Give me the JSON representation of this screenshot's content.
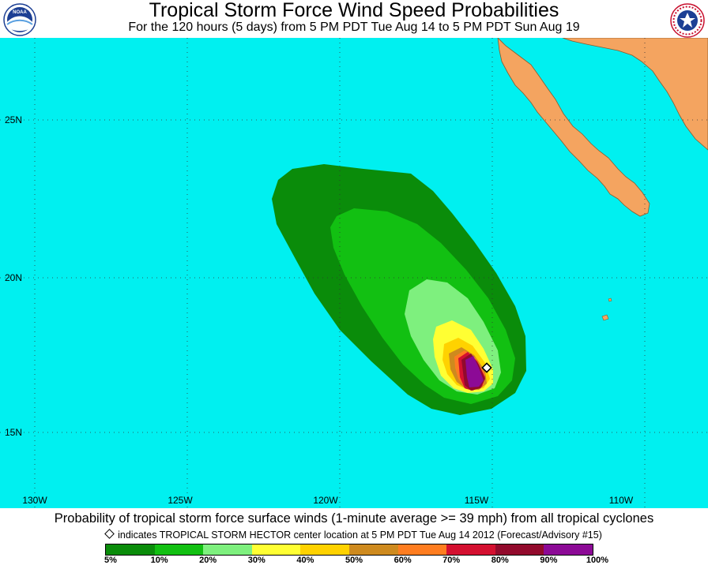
{
  "header": {
    "title": "Tropical Storm Force Wind Speed Probabilities",
    "subtitle": "For the 120 hours (5 days) from 5 PM PDT Tue Aug 14 to 5 PM PDT Sun Aug 19",
    "left_logo_text": "NOAA",
    "right_logo_text": "NATIONAL WEATHER SERVICE"
  },
  "map": {
    "ocean_color": "#00f0f0",
    "land_color": "#f4a460",
    "lat_labels": [
      "25N",
      "20N",
      "15N"
    ],
    "lon_labels": [
      "130W",
      "125W",
      "120W",
      "115W",
      "110W"
    ],
    "storm_marker": "TROPICAL STORM HECTOR center"
  },
  "footer": {
    "caption": "Probability of tropical storm force surface winds (1-minute average >= 39 mph) from all tropical cyclones",
    "note": "indicates TROPICAL STORM HECTOR center location at 5 PM PDT Tue Aug 14 2012 (Forecast/Advisory #15)"
  },
  "legend": {
    "colors": [
      "#0a8c0a",
      "#12c012",
      "#7ef07e",
      "#ffff33",
      "#ffd200",
      "#ce8a1e",
      "#ff7d20",
      "#d41030",
      "#920a2c",
      "#8c0a96"
    ],
    "labels": [
      "5%",
      "10%",
      "20%",
      "30%",
      "40%",
      "50%",
      "60%",
      "70%",
      "80%",
      "90%",
      "100%"
    ]
  }
}
